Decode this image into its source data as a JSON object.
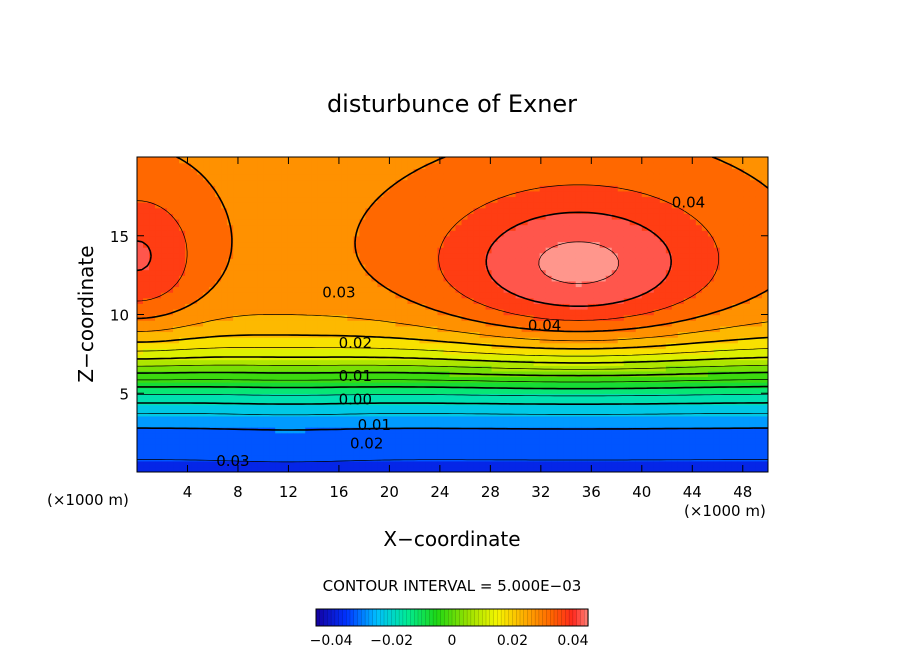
{
  "chart_data": {
    "type": "contour",
    "title": "disturbunce of Exner",
    "xlabel": "X−coordinate",
    "ylabel": "Z−coordinate",
    "x_unit_label": "(×1000 m)",
    "z_unit_label": "(×1000 m)",
    "xlim": [
      0,
      50
    ],
    "ylim": [
      0,
      20
    ],
    "x_ticks": [
      4,
      8,
      12,
      16,
      20,
      24,
      28,
      32,
      36,
      40,
      44,
      48
    ],
    "x_tick_labels": [
      "4",
      "8",
      "12",
      "16",
      "20",
      "24",
      "28",
      "32",
      "36",
      "40",
      "44",
      "48"
    ],
    "y_ticks": [
      5,
      10,
      15
    ],
    "y_tick_labels": [
      "5",
      "10",
      "15"
    ],
    "contour_interval": 0.005,
    "contour_interval_text": "CONTOUR INTERVAL = 5.000E−03",
    "value_range": [
      -0.045,
      0.045
    ],
    "features": [
      {
        "kind": "maximum",
        "x": 35,
        "z": 13,
        "value": 0.045
      },
      {
        "kind": "maximum",
        "x": 0,
        "z": 13.5,
        "value": 0.04
      },
      {
        "kind": "saddle",
        "x": 12.5,
        "z": 15,
        "value": 0.033
      },
      {
        "kind": "minimum",
        "x": 12,
        "z": 0,
        "value": -0.035
      }
    ],
    "contour_labels": [
      {
        "text": "0.04",
        "x": 43.7,
        "z": 17.1
      },
      {
        "text": "0.04",
        "x": 32.3,
        "z": 9.3
      },
      {
        "text": "0.03",
        "x": 16,
        "z": 11.4
      },
      {
        "text": "0.02",
        "x": 17.3,
        "z": 8.2
      },
      {
        "text": "0.01",
        "x": 17.3,
        "z": 6.1
      },
      {
        "text": "0.00",
        "x": 17.3,
        "z": 4.6
      },
      {
        "text": "0.01",
        "x": 18.8,
        "z": 3.0
      },
      {
        "text": "0.02",
        "x": 18.2,
        "z": 1.8
      },
      {
        "text": "0.03",
        "x": 7.6,
        "z": 0.7
      }
    ],
    "colorbar": {
      "tick_values": [
        -0.04,
        -0.02,
        0,
        0.02,
        0.04
      ],
      "tick_labels": [
        "−0.04",
        "−0.02",
        "0",
        "0.02",
        "0.04"
      ]
    }
  }
}
